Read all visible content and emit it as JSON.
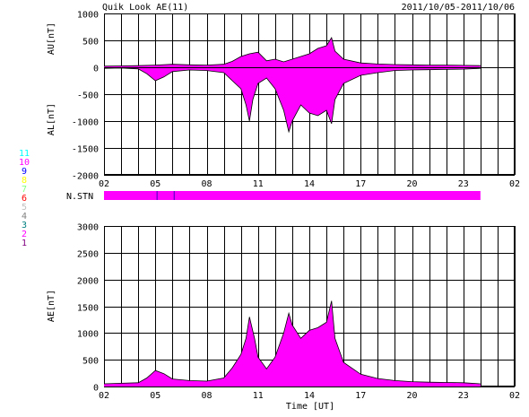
{
  "header": {
    "title": "Quik Look AE(11)",
    "date_range": "2011/10/05-2011/10/06"
  },
  "colors": {
    "fill": "#ff00ff",
    "trace": "#000000",
    "stn": [
      "#0000ff",
      "#800080",
      "#ff00ff",
      "#008080",
      "#808080",
      "#c0c0c0",
      "#ff0000",
      "#80ff80",
      "#ffff00",
      "#0000ff",
      "#ff00ff",
      "#00ffff"
    ]
  },
  "station_legend": [
    "11",
    "10",
    "9",
    "8",
    "7",
    "6",
    "5",
    "4",
    "3",
    "2",
    "1"
  ],
  "stn_label": "N.STN",
  "chart_data": [
    {
      "type": "area",
      "name": "AU/AL",
      "ylabel_top": "AU[nT]",
      "ylabel_bottom": "AL[nT]",
      "ylim": [
        -2000,
        1000
      ],
      "yticks": [
        "1000",
        "500",
        "0",
        "-500",
        "-1000",
        "-1500",
        "-2000"
      ],
      "xlim": [
        2,
        26
      ],
      "xticks": [
        "02",
        "05",
        "08",
        "11",
        "14",
        "17",
        "20",
        "23",
        "02"
      ],
      "au": [
        [
          2,
          20
        ],
        [
          3,
          25
        ],
        [
          4,
          30
        ],
        [
          5,
          40
        ],
        [
          6,
          55
        ],
        [
          7,
          45
        ],
        [
          8,
          40
        ],
        [
          9,
          55
        ],
        [
          9.5,
          110
        ],
        [
          10,
          200
        ],
        [
          10.5,
          250
        ],
        [
          11,
          280
        ],
        [
          11.5,
          120
        ],
        [
          12,
          150
        ],
        [
          12.5,
          100
        ],
        [
          13,
          150
        ],
        [
          13.5,
          200
        ],
        [
          14,
          250
        ],
        [
          14.5,
          350
        ],
        [
          15,
          400
        ],
        [
          15.3,
          550
        ],
        [
          15.5,
          300
        ],
        [
          16,
          150
        ],
        [
          17,
          80
        ],
        [
          18,
          60
        ],
        [
          19,
          50
        ],
        [
          20,
          45
        ],
        [
          21,
          40
        ],
        [
          22,
          40
        ],
        [
          23,
          35
        ],
        [
          24,
          30
        ]
      ],
      "al": [
        [
          2,
          -20
        ],
        [
          3,
          -15
        ],
        [
          4,
          -30
        ],
        [
          4.5,
          -120
        ],
        [
          5,
          -250
        ],
        [
          5.5,
          -180
        ],
        [
          6,
          -80
        ],
        [
          7,
          -50
        ],
        [
          8,
          -60
        ],
        [
          9,
          -100
        ],
        [
          9.5,
          -250
        ],
        [
          10,
          -400
        ],
        [
          10.3,
          -700
        ],
        [
          10.5,
          -1000
        ],
        [
          10.7,
          -600
        ],
        [
          11,
          -300
        ],
        [
          11.5,
          -200
        ],
        [
          12,
          -400
        ],
        [
          12.5,
          -800
        ],
        [
          12.8,
          -1200
        ],
        [
          13,
          -1000
        ],
        [
          13.5,
          -700
        ],
        [
          14,
          -850
        ],
        [
          14.5,
          -900
        ],
        [
          15,
          -800
        ],
        [
          15.3,
          -1050
        ],
        [
          15.5,
          -600
        ],
        [
          16,
          -300
        ],
        [
          17,
          -150
        ],
        [
          18,
          -100
        ],
        [
          19,
          -60
        ],
        [
          20,
          -50
        ],
        [
          21,
          -45
        ],
        [
          22,
          -40
        ],
        [
          23,
          -35
        ],
        [
          24,
          -20
        ]
      ]
    },
    {
      "type": "bar",
      "name": "N.STN",
      "xlim": [
        2,
        26
      ],
      "bars": [
        {
          "from": 2,
          "to": 24,
          "color_index": 10
        }
      ]
    },
    {
      "type": "area",
      "name": "AE",
      "ylabel": "AE[nT]",
      "xlabel": "Time [UT]",
      "ylim": [
        0,
        3000
      ],
      "yticks": [
        "3000",
        "2500",
        "2000",
        "1500",
        "1000",
        "500",
        "0"
      ],
      "xlim": [
        2,
        26
      ],
      "xticks": [
        "02",
        "05",
        "08",
        "11",
        "14",
        "17",
        "20",
        "23",
        "02"
      ],
      "values": [
        [
          2,
          50
        ],
        [
          3,
          60
        ],
        [
          4,
          70
        ],
        [
          4.5,
          160
        ],
        [
          5,
          300
        ],
        [
          5.5,
          240
        ],
        [
          6,
          140
        ],
        [
          7,
          110
        ],
        [
          8,
          100
        ],
        [
          9,
          160
        ],
        [
          9.5,
          350
        ],
        [
          10,
          600
        ],
        [
          10.3,
          900
        ],
        [
          10.5,
          1300
        ],
        [
          10.8,
          900
        ],
        [
          11,
          550
        ],
        [
          11.5,
          330
        ],
        [
          12,
          550
        ],
        [
          12.5,
          1000
        ],
        [
          12.8,
          1370
        ],
        [
          13,
          1150
        ],
        [
          13.5,
          900
        ],
        [
          14,
          1050
        ],
        [
          14.5,
          1100
        ],
        [
          15,
          1200
        ],
        [
          15.3,
          1600
        ],
        [
          15.5,
          900
        ],
        [
          16,
          450
        ],
        [
          17,
          230
        ],
        [
          18,
          150
        ],
        [
          19,
          110
        ],
        [
          20,
          90
        ],
        [
          21,
          80
        ],
        [
          22,
          75
        ],
        [
          23,
          70
        ],
        [
          24,
          50
        ]
      ]
    }
  ]
}
